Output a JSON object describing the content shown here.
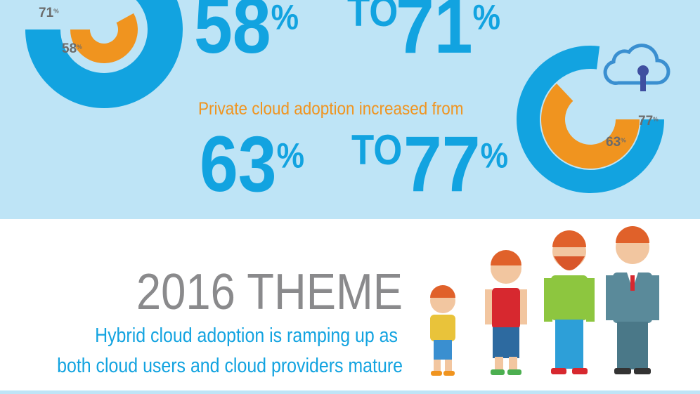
{
  "public_cloud": {
    "from": {
      "value": 58,
      "label": "58%"
    },
    "connector": "TO",
    "to": {
      "value": 71,
      "label": "71%"
    },
    "chart_labels": [
      "71%",
      "58%"
    ]
  },
  "private_cloud": {
    "heading": "Private cloud adoption increased from",
    "from": {
      "value": 63,
      "label": "63%"
    },
    "connector": "TO",
    "to": {
      "value": 77,
      "label": "77%"
    },
    "chart_labels": [
      "77%",
      "63%"
    ]
  },
  "theme": {
    "title": "2016  THEME",
    "lines": [
      "Hybrid cloud adoption is ramping up as",
      "both cloud users and cloud providers mature"
    ]
  }
}
